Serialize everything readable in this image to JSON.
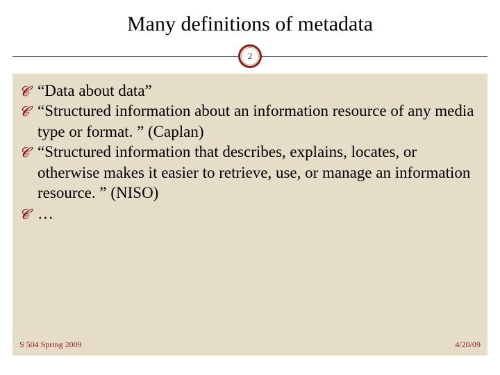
{
  "slide": {
    "title": "Many definitions of metadata",
    "slide_number": "2",
    "bullets": [
      "“Data about data”",
      "“Structured information about an information resource of any media type or format. ” (Caplan)",
      "“Structured information that describes, explains, locates, or otherwise makes it easier to retrieve, use, or manage an information resource. ” (NISO)",
      "…"
    ],
    "footer_left": "S 504 Spring 2009",
    "footer_right": "4/20/09"
  },
  "style": {
    "accent_color": "#8b1a1a",
    "content_background": "#e6ddc8",
    "page_background": "#ffffff",
    "title_fontsize": 30,
    "body_fontsize": 23,
    "footer_fontsize": 12,
    "font_family": "Georgia, serif",
    "bullet_marker": "curly-flourish"
  }
}
